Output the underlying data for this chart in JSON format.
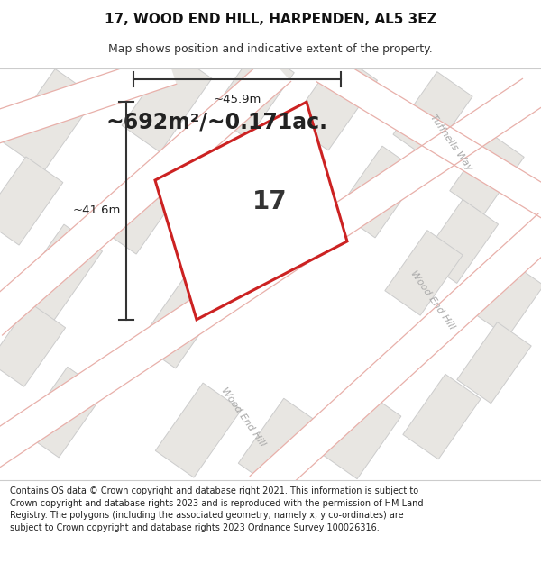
{
  "title": "17, WOOD END HILL, HARPENDEN, AL5 3EZ",
  "subtitle": "Map shows position and indicative extent of the property.",
  "area_text": "~692m²/~0.171ac.",
  "width_label": "~45.9m",
  "height_label": "~41.6m",
  "number_label": "17",
  "footer": "Contains OS data © Crown copyright and database right 2021. This information is subject to Crown copyright and database rights 2023 and is reproduced with the permission of HM Land Registry. The polygons (including the associated geometry, namely x, y co-ordinates) are subject to Crown copyright and database rights 2023 Ordnance Survey 100026316.",
  "bg_color": "#f5f3f0",
  "block_color": "#e8e6e2",
  "block_ec": "#cccccc",
  "road_outline_color": "#e8b0aa",
  "plot_color": "#cc2222",
  "dim_color": "#333333",
  "road_label_color": "#aaaaaa",
  "title_fontsize": 11,
  "subtitle_fontsize": 9,
  "area_fontsize": 17,
  "number_fontsize": 20,
  "dim_fontsize": 9.5,
  "footer_fontsize": 7.0
}
